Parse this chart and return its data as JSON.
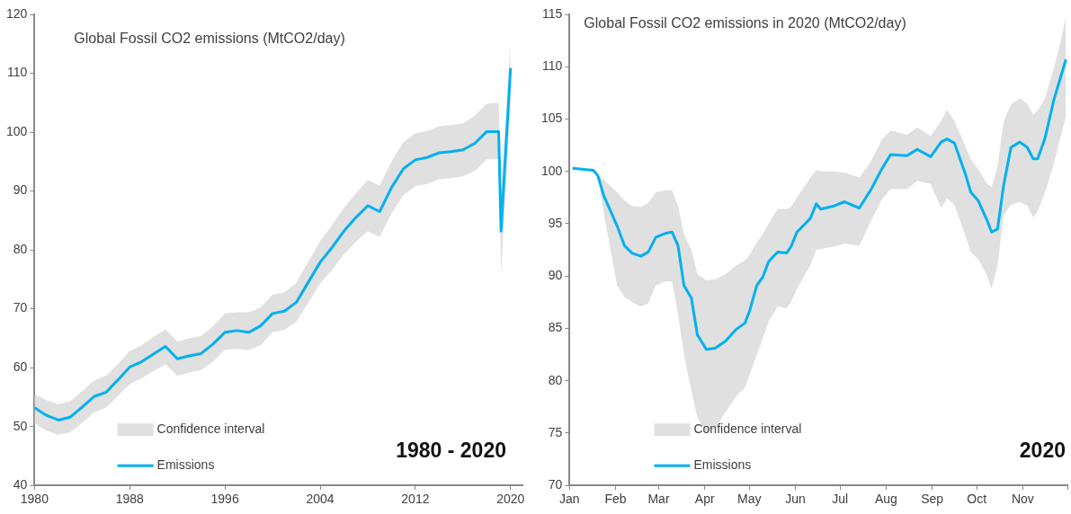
{
  "chart_data": [
    {
      "type": "line",
      "title": "Global Fossil CO2 emissions (MtCO2/day)",
      "annotations": [
        "Confidence interval",
        "1980 - 2020"
      ],
      "legend": "bottom left",
      "grid": false,
      "marker": "none",
      "line_style": "solid",
      "xlim": [
        1980,
        2021
      ],
      "xticks": [
        1980,
        1988,
        1996,
        2004,
        2012,
        2020
      ],
      "ylim": [
        40,
        120
      ],
      "yticks": [
        40,
        50,
        60,
        70,
        80,
        90,
        100,
        110,
        120
      ],
      "series": [
        {
          "name": "Emissions",
          "type": "line",
          "color": "#00b0f0",
          "x": [
            1980,
            1981,
            1982,
            1983,
            1984,
            1985,
            1986,
            1987,
            1988,
            1989,
            1990,
            1991,
            1992,
            1993,
            1994,
            1995,
            1996,
            1997,
            1998,
            1999,
            2000,
            2001,
            2002,
            2003,
            2004,
            2005,
            2006,
            2007,
            2008,
            2009,
            2010,
            2011,
            2012,
            2013,
            2014,
            2015,
            2016,
            2017,
            2018,
            2019,
            2019.2,
            2020
          ],
          "values": [
            53.2,
            51.9,
            51.1,
            51.6,
            53.3,
            55.1,
            55.8,
            57.9,
            60.1,
            61.0,
            62.3,
            63.6,
            61.5,
            62.0,
            62.4,
            64.0,
            66.0,
            66.3,
            66.0,
            67.1,
            69.2,
            69.6,
            71.1,
            74.5,
            77.9,
            80.4,
            83.2,
            85.5,
            87.5,
            86.5,
            90.6,
            93.8,
            95.3,
            95.7,
            96.5,
            96.7,
            97.0,
            98.1,
            100.1,
            100.1,
            83.2,
            110.9
          ],
          "upper": [
            55.5,
            54.5,
            53.8,
            54.3,
            56.0,
            57.8,
            58.6,
            60.6,
            62.8,
            63.8,
            65.2,
            66.5,
            64.4,
            65.0,
            65.4,
            67.0,
            69.2,
            69.4,
            69.4,
            70.2,
            72.4,
            72.8,
            74.4,
            78.0,
            81.5,
            84.2,
            87.1,
            89.6,
            91.9,
            90.9,
            95.0,
            98.3,
            99.8,
            100.2,
            101.0,
            101.2,
            101.5,
            102.8,
            104.8,
            105.0,
            90.0,
            115.1
          ],
          "lower": [
            50.6,
            49.3,
            48.6,
            49.0,
            50.6,
            52.4,
            53.2,
            55.2,
            57.2,
            58.2,
            59.4,
            60.6,
            58.6,
            59.2,
            59.6,
            61.0,
            63.0,
            63.2,
            63.0,
            63.8,
            66.0,
            66.4,
            67.8,
            71.0,
            74.3,
            76.6,
            79.3,
            81.4,
            83.2,
            82.2,
            86.2,
            89.3,
            90.8,
            91.2,
            92.0,
            92.2,
            92.5,
            93.4,
            95.4,
            95.4,
            75.9,
            105.0
          ]
        }
      ]
    },
    {
      "type": "line",
      "title": "Global Fossil CO2 emissions in 2020 (MtCO2/day)",
      "annotations": [
        "Confidence interval",
        "2020"
      ],
      "legend": "bottom left",
      "grid": false,
      "marker": "none",
      "line_style": "solid",
      "xlim": [
        "2020-01-01",
        "2020-12-01"
      ],
      "xticks": [
        {
          "value": "2020-01-01",
          "label": "Jan"
        },
        {
          "value": "2020-02-01",
          "label": "Feb"
        },
        {
          "value": "2020-03-01",
          "label": "Mar"
        },
        {
          "value": "2020-04-01",
          "label": "Apr"
        },
        {
          "value": "2020-05-01",
          "label": "May"
        },
        {
          "value": "2020-06-01",
          "label": "Jun"
        },
        {
          "value": "2020-07-01",
          "label": "Jul"
        },
        {
          "value": "2020-08-01",
          "label": "Aug"
        },
        {
          "value": "2020-09-01",
          "label": "Sep"
        },
        {
          "value": "2020-10-01",
          "label": "Oct"
        },
        {
          "value": "2020-11-01",
          "label": "Nov"
        },
        {
          "value": "2020-12-01",
          "label": null
        }
      ],
      "ylim": [
        70,
        115
      ],
      "yticks": [
        70,
        75,
        80,
        85,
        90,
        95,
        100,
        105,
        110,
        115
      ],
      "series": [
        {
          "name": "Emissions",
          "type": "line",
          "color": "#00b0f0",
          "x": [
            "2020-01-03",
            "2020-01-17",
            "2020-01-20",
            "2020-01-24",
            "2020-02-02",
            "2020-02-07",
            "2020-02-12",
            "2020-02-18",
            "2020-02-23",
            "2020-02-28",
            "2020-03-06",
            "2020-03-10",
            "2020-03-14",
            "2020-03-18",
            "2020-03-23",
            "2020-03-27",
            "2020-04-02",
            "2020-04-08",
            "2020-04-15",
            "2020-04-22",
            "2020-04-28",
            "2020-05-01",
            "2020-05-06",
            "2020-05-10",
            "2020-05-14",
            "2020-05-20",
            "2020-05-26",
            "2020-05-29",
            "2020-06-02",
            "2020-06-11",
            "2020-06-15",
            "2020-06-18",
            "2020-06-27",
            "2020-07-04",
            "2020-07-14",
            "2020-07-22",
            "2020-07-29",
            "2020-08-04",
            "2020-08-15",
            "2020-08-22",
            "2020-08-31",
            "2020-09-07",
            "2020-09-11",
            "2020-09-16",
            "2020-09-23",
            "2020-09-27",
            "2020-10-02",
            "2020-10-08",
            "2020-10-11",
            "2020-10-15",
            "2020-10-19",
            "2020-10-24",
            "2020-10-30",
            "2020-11-04",
            "2020-11-08",
            "2020-11-11",
            "2020-11-16",
            "2020-11-22",
            "2020-11-25",
            "2020-11-30"
          ],
          "values": [
            100.3,
            100.1,
            99.6,
            97.7,
            94.8,
            92.9,
            92.2,
            91.9,
            92.3,
            93.7,
            94.1,
            94.2,
            92.9,
            89.1,
            87.9,
            84.4,
            83.0,
            83.1,
            83.8,
            84.9,
            85.5,
            86.6,
            89.1,
            89.9,
            91.4,
            92.3,
            92.2,
            92.8,
            94.2,
            95.5,
            96.9,
            96.4,
            96.7,
            97.1,
            96.5,
            98.3,
            100.2,
            101.6,
            101.5,
            102.1,
            101.4,
            102.8,
            103.1,
            102.7,
            99.9,
            98.0,
            97.2,
            95.3,
            94.2,
            94.5,
            98.6,
            102.3,
            102.8,
            102.3,
            101.2,
            101.2,
            103.2,
            106.9,
            108.3,
            110.7
          ],
          "upper": [
            100.3,
            100.1,
            99.7,
            99.2,
            98.0,
            97.2,
            96.7,
            96.6,
            97.0,
            98.0,
            98.2,
            98.2,
            96.7,
            94.0,
            92.5,
            90.2,
            89.6,
            89.7,
            90.2,
            91.0,
            91.5,
            92.0,
            93.2,
            94.0,
            95.0,
            96.4,
            96.4,
            96.6,
            97.5,
            99.4,
            100.1,
            100.0,
            100.0,
            99.9,
            99.4,
            101.0,
            103.0,
            103.9,
            103.5,
            104.2,
            103.4,
            104.8,
            105.9,
            104.8,
            102.5,
            101.2,
            100.2,
            98.8,
            98.5,
            100.5,
            104.7,
            106.4,
            107.0,
            106.5,
            105.4,
            105.8,
            107.0,
            110.0,
            111.5,
            114.8
          ],
          "lower": [
            100.3,
            100.1,
            99.5,
            96.0,
            89.1,
            88.0,
            87.5,
            87.1,
            87.4,
            89.1,
            89.5,
            89.5,
            86.3,
            82.5,
            79.0,
            76.5,
            75.0,
            75.5,
            77.0,
            78.5,
            79.3,
            80.5,
            82.5,
            84.0,
            85.7,
            87.1,
            86.9,
            87.5,
            88.8,
            91.0,
            92.5,
            92.6,
            92.8,
            93.1,
            92.9,
            95.3,
            97.3,
            98.3,
            98.3,
            99.1,
            98.8,
            96.5,
            97.4,
            96.8,
            94.0,
            92.3,
            91.6,
            90.0,
            88.8,
            91.0,
            95.8,
            96.8,
            97.1,
            96.7,
            95.6,
            96.2,
            98.0,
            100.8,
            102.5,
            105.3
          ]
        }
      ]
    }
  ]
}
